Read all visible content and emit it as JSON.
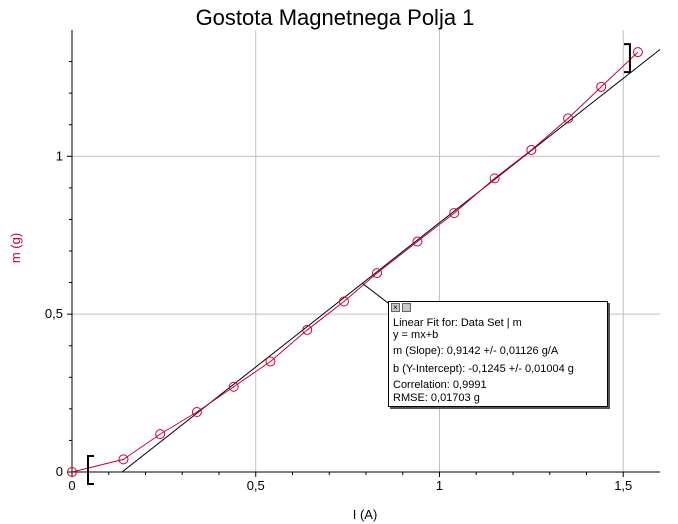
{
  "chart_data": {
    "type": "scatter",
    "title": "Gostota Magnetnega Polja 1",
    "xlabel": "I (A)",
    "ylabel": "m (g)",
    "xlim": [
      0,
      1.6
    ],
    "ylim": [
      0,
      1.4
    ],
    "x_ticks": [
      0,
      0.5,
      1,
      1.5
    ],
    "x_tick_labels": [
      "0",
      "0,5",
      "1",
      "1,5"
    ],
    "y_ticks": [
      0,
      0.5,
      1
    ],
    "y_tick_labels": [
      "0",
      "0,5",
      "1"
    ],
    "grid": true,
    "series": [
      {
        "x": [
          0,
          0.14,
          0.24,
          0.34,
          0.44,
          0.54,
          0.64,
          0.74,
          0.83,
          0.94,
          1.04,
          1.15,
          1.25,
          1.35,
          1.44,
          1.54
        ],
        "y": [
          0,
          0.04,
          0.12,
          0.19,
          0.27,
          0.35,
          0.45,
          0.54,
          0.63,
          0.73,
          0.82,
          0.93,
          1.02,
          1.12,
          1.22,
          1.33
        ],
        "color": "#cc0033",
        "marker": "circle"
      }
    ],
    "fit": {
      "slope": 0.9142,
      "intercept": -0.1245,
      "color": "#000000"
    }
  },
  "fit_box": {
    "lines": [
      "Linear Fit for: Data Set | m",
      "y = mx+b",
      "m (Slope): 0,9142 +/- 0,01126 g/A",
      "b (Y-Intercept): -0,1245 +/- 0,01004 g",
      "Correlation: 0,9991",
      "RMSE: 0,01703 g"
    ]
  },
  "colors": {
    "data": "#cc0033",
    "fit": "#000000",
    "grid": "#c0c0c0",
    "ylabel": "#cc0033"
  }
}
